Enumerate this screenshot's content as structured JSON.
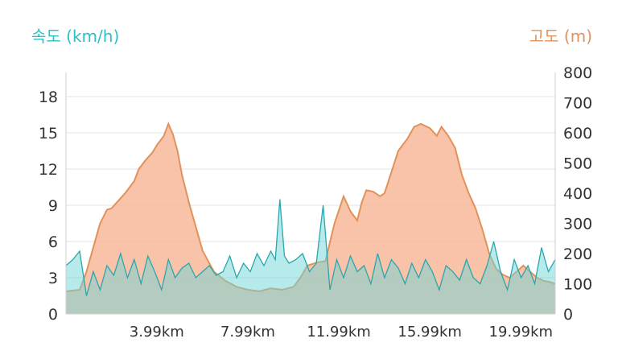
{
  "chart_data": {
    "type": "area",
    "x_unit_ticks": [
      "3.99km",
      "7.99km",
      "11.99km",
      "15.99km",
      "19.99km"
    ],
    "x_tick_values": [
      3.99,
      7.99,
      11.99,
      15.99,
      19.99
    ],
    "xlim": [
      0,
      21.5
    ],
    "left_axis": {
      "label": "속도 (km/h)",
      "ticks": [
        0,
        3,
        6,
        9,
        12,
        15,
        18
      ],
      "ylim": [
        0,
        20
      ],
      "color": "#2bbfc8"
    },
    "right_axis": {
      "label": "고도 (m)",
      "ticks": [
        0,
        100,
        200,
        300,
        400,
        500,
        600,
        700,
        800
      ],
      "ylim": [
        0,
        800
      ],
      "color": "#e0925a"
    },
    "grid": true,
    "series": [
      {
        "axis": "right",
        "color": "#f7b899",
        "stroke": "#e0925a",
        "x": [
          0,
          0.6,
          0.9,
          1.2,
          1.5,
          1.8,
          2.0,
          2.3,
          2.6,
          2.8,
          3.0,
          3.2,
          3.5,
          3.8,
          4.0,
          4.3,
          4.5,
          4.7,
          4.9,
          5.1,
          5.4,
          5.7,
          6.0,
          6.5,
          7.0,
          7.5,
          8.0,
          8.5,
          9.0,
          9.5,
          10.0,
          10.3,
          10.6,
          11.0,
          11.4,
          11.8,
          12.2,
          12.5,
          12.8,
          13.0,
          13.2,
          13.5,
          13.8,
          14.0,
          14.3,
          14.6,
          15.0,
          15.3,
          15.6,
          16.0,
          16.3,
          16.5,
          16.8,
          17.1,
          17.4,
          17.7,
          18.0,
          18.3,
          18.6,
          18.9,
          19.2,
          19.5,
          19.8,
          20.1,
          20.4,
          20.7,
          21.0,
          21.3,
          21.5
        ],
        "y": [
          75,
          80,
          140,
          220,
          300,
          345,
          350,
          375,
          400,
          420,
          440,
          480,
          510,
          535,
          560,
          590,
          630,
          595,
          540,
          460,
          370,
          290,
          210,
          140,
          110,
          90,
          80,
          75,
          85,
          80,
          90,
          120,
          160,
          170,
          175,
          300,
          390,
          340,
          310,
          370,
          410,
          405,
          390,
          400,
          470,
          540,
          580,
          620,
          630,
          615,
          590,
          620,
          590,
          550,
          460,
          400,
          350,
          280,
          200,
          150,
          130,
          120,
          140,
          160,
          140,
          120,
          110,
          105,
          100
        ]
      },
      {
        "axis": "left",
        "color": "#70d6d8",
        "stroke": "#2aa6ae",
        "x": [
          0,
          0.3,
          0.6,
          0.9,
          1.2,
          1.5,
          1.8,
          2.1,
          2.4,
          2.7,
          3.0,
          3.3,
          3.6,
          3.9,
          4.2,
          4.5,
          4.8,
          5.1,
          5.4,
          5.7,
          6.0,
          6.3,
          6.6,
          6.9,
          7.2,
          7.5,
          7.8,
          8.1,
          8.4,
          8.7,
          9.0,
          9.2,
          9.4,
          9.6,
          9.8,
          10.1,
          10.4,
          10.7,
          11.0,
          11.3,
          11.6,
          11.9,
          12.2,
          12.5,
          12.8,
          13.1,
          13.4,
          13.7,
          14.0,
          14.3,
          14.6,
          14.9,
          15.2,
          15.5,
          15.8,
          16.1,
          16.4,
          16.7,
          17.0,
          17.3,
          17.6,
          17.9,
          18.2,
          18.5,
          18.8,
          19.1,
          19.4,
          19.7,
          20.0,
          20.3,
          20.6,
          20.9,
          21.2,
          21.5
        ],
        "y": [
          4.0,
          4.5,
          5.2,
          1.5,
          3.5,
          2.0,
          4.0,
          3.2,
          5.0,
          3.0,
          4.5,
          2.5,
          4.8,
          3.5,
          2.0,
          4.5,
          3.0,
          3.8,
          4.2,
          3.0,
          3.5,
          4.0,
          3.2,
          3.5,
          4.8,
          3.0,
          4.2,
          3.5,
          5.0,
          4.0,
          5.2,
          4.5,
          9.5,
          4.8,
          4.2,
          4.5,
          5.0,
          3.5,
          4.2,
          9.0,
          2.0,
          4.5,
          3.0,
          4.8,
          3.5,
          4.0,
          2.5,
          5.0,
          3.0,
          4.5,
          3.8,
          2.5,
          4.2,
          3.0,
          4.5,
          3.5,
          2.0,
          4.0,
          3.5,
          2.8,
          4.5,
          3.0,
          2.5,
          4.0,
          6.0,
          3.5,
          2.0,
          4.5,
          3.0,
          4.0,
          2.5,
          5.5,
          3.5,
          4.5
        ]
      }
    ]
  }
}
